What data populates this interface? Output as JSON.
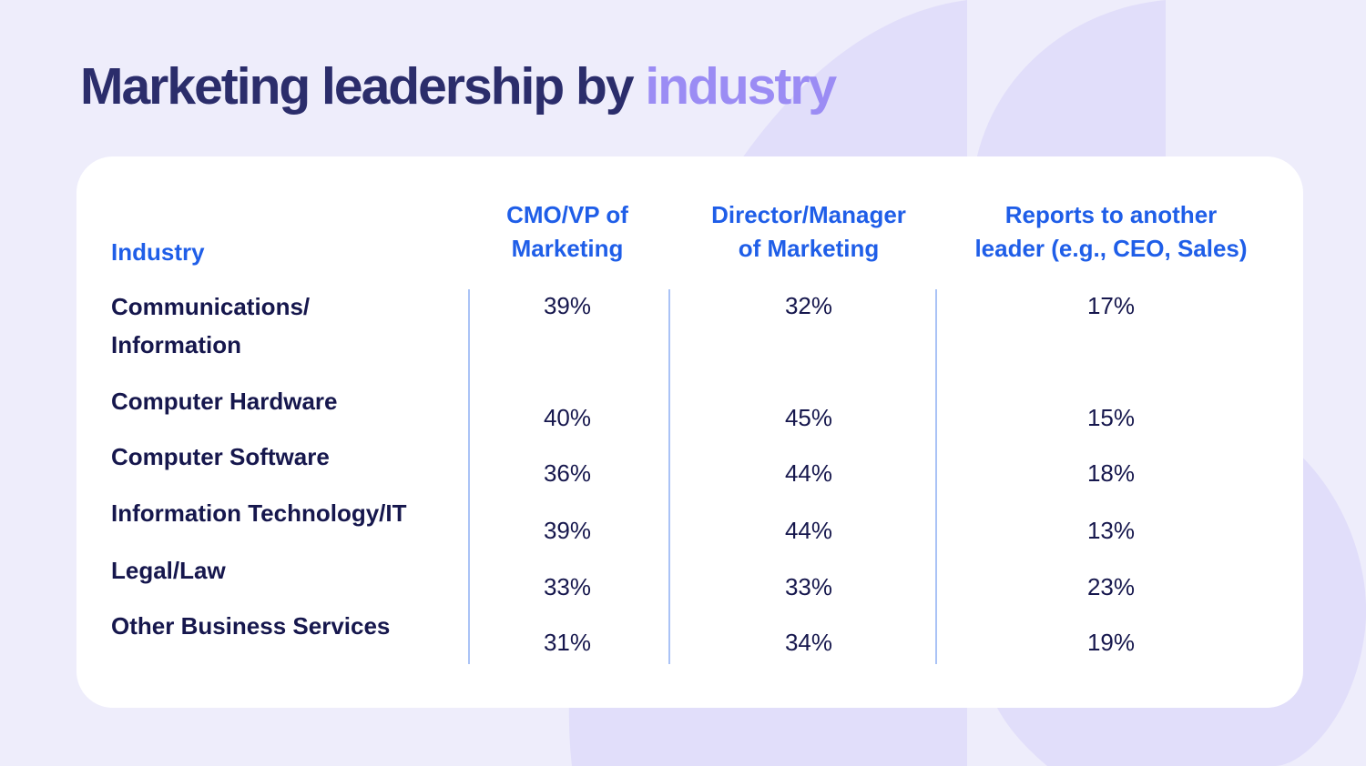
{
  "title": {
    "main": "Marketing leadership by",
    "accent": "industry"
  },
  "colors": {
    "background": "#eeedfb",
    "shape": "#e1defa",
    "title": "#2b2d6b",
    "accent": "#9b8cf4",
    "header": "#1f5ee8",
    "text": "#16174d",
    "divider": "#aac3f6"
  },
  "chart_data": {
    "type": "table",
    "columns": [
      "Industry",
      "CMO/VP of\nMarketing",
      "Director/Manager\nof Marketing",
      "Reports to another\nleader (e.g., CEO, Sales)"
    ],
    "rows": [
      {
        "industry": "Communications/\nInformation",
        "values": [
          "39%",
          "32%",
          "17%"
        ]
      },
      {
        "industry": "Computer Hardware",
        "values": [
          "40%",
          "45%",
          "15%"
        ]
      },
      {
        "industry": "Computer Software",
        "values": [
          "36%",
          "44%",
          "18%"
        ]
      },
      {
        "industry": "Information Technology/IT",
        "values": [
          "39%",
          "44%",
          "13%"
        ]
      },
      {
        "industry": "Legal/Law",
        "values": [
          "33%",
          "33%",
          "23%"
        ]
      },
      {
        "industry": "Other Business Services",
        "values": [
          "31%",
          "34%",
          "19%"
        ]
      }
    ]
  }
}
